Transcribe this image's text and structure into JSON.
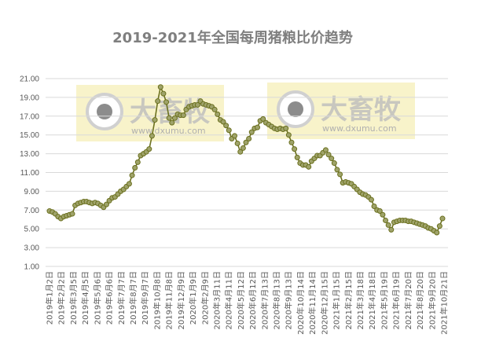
{
  "chart_data": {
    "type": "line",
    "title": "2019-2021年全国每周猪粮比价趋势",
    "xlabel": "",
    "ylabel": "",
    "ylim": [
      1,
      21
    ],
    "yticks": [
      "1.00",
      "3.00",
      "5.00",
      "7.00",
      "9.00",
      "11.00",
      "13.00",
      "15.00",
      "17.00",
      "19.00",
      "21.00"
    ],
    "grid": true,
    "legend": "none",
    "line_color": "#6b701f",
    "marker_fill": "#9fa36a",
    "x_tick_labels": [
      "2019年1月2日",
      "2019年2月2日",
      "2019年3月5日",
      "2019年4月5日",
      "2019年5月6日",
      "2019年6月6日",
      "2019年7月7日",
      "2019年8月7日",
      "2019年9月7日",
      "2019年10月8日",
      "2019年11月8日",
      "2019年12月9日",
      "2020年1月9日",
      "2020年2月9日",
      "2020年3月11日",
      "2020年4月11日",
      "2020年5月12日",
      "2020年6月12日",
      "2020年7月13日",
      "2020年8月13日",
      "2020年9月13日",
      "2020年10月14日",
      "2020年11月14日",
      "2020年12月15日",
      "2021年1月15日",
      "2021年2月15日",
      "2021年3月18日",
      "2021年4月18日",
      "2021年5月19日",
      "2021年6月19日",
      "2021年7月20日",
      "2021年8月20日",
      "2021年9月20日",
      "2021年10月21日"
    ],
    "values": [
      6.9,
      6.8,
      6.6,
      6.3,
      6.1,
      6.3,
      6.4,
      6.5,
      6.6,
      7.5,
      7.7,
      7.8,
      7.9,
      7.9,
      7.8,
      7.7,
      7.8,
      7.7,
      7.5,
      7.3,
      7.6,
      8.0,
      8.3,
      8.4,
      8.7,
      9.0,
      9.2,
      9.5,
      9.8,
      10.7,
      11.5,
      12.1,
      12.8,
      13.0,
      13.2,
      13.5,
      14.9,
      16.6,
      18.6,
      20.1,
      19.4,
      18.5,
      16.8,
      16.3,
      16.8,
      17.2,
      17.1,
      17.1,
      17.7,
      18.0,
      18.1,
      18.2,
      18.2,
      18.6,
      18.3,
      18.2,
      18.1,
      18.0,
      17.7,
      17.2,
      16.6,
      16.4,
      16.0,
      15.5,
      14.6,
      14.9,
      14.1,
      13.2,
      13.6,
      14.2,
      14.6,
      15.3,
      15.7,
      15.8,
      16.5,
      16.7,
      16.3,
      16.1,
      15.9,
      15.7,
      15.6,
      15.7,
      15.6,
      15.7,
      15.0,
      14.2,
      13.5,
      12.6,
      12.0,
      11.8,
      11.8,
      11.6,
      12.2,
      12.5,
      12.8,
      12.8,
      13.1,
      13.4,
      12.9,
      12.5,
      12.0,
      11.3,
      10.8,
      9.9,
      10.0,
      9.9,
      9.8,
      9.5,
      9.2,
      8.9,
      8.7,
      8.6,
      8.4,
      8.1,
      7.4,
      7.0,
      6.9,
      6.5,
      5.9,
      5.4,
      4.9,
      5.7,
      5.8,
      5.9,
      5.9,
      5.9,
      5.8,
      5.8,
      5.7,
      5.6,
      5.5,
      5.4,
      5.3,
      5.1,
      5.0,
      4.8,
      4.6,
      5.3,
      6.1
    ]
  },
  "watermark": {
    "brand": "大畜牧",
    "url": "www.dxumu.com"
  }
}
